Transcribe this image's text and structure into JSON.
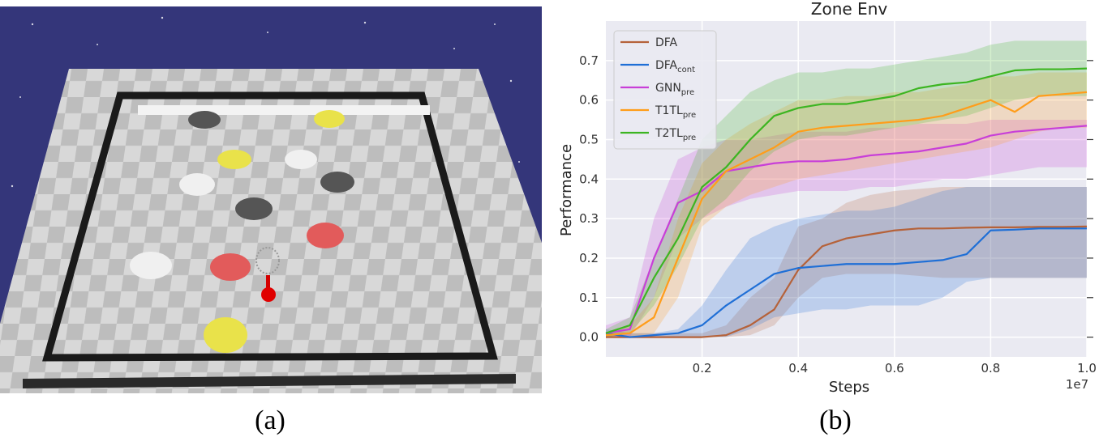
{
  "captions": [
    "(a)",
    "(b)"
  ],
  "chart_data": {
    "type": "line",
    "title": "Zone Env",
    "xlabel": "Steps",
    "ylabel": "Performance",
    "x_offset_label": "1e7",
    "grid": true,
    "legend": "upper left",
    "xlim": [
      0,
      1.0
    ],
    "ylim": [
      -0.05,
      0.8
    ],
    "xticks": [
      0.2,
      0.4,
      0.6,
      0.8,
      {
        "value": 1,
        "label": "1.0"
      }
    ],
    "yticks": [
      {
        "value": 0,
        "label": "0.0"
      },
      0.1,
      0.2,
      0.3,
      0.4,
      0.5,
      0.6,
      0.7
    ],
    "x": [
      0,
      0.05,
      0.1,
      0.15,
      0.2,
      0.25,
      0.3,
      0.35,
      0.4,
      0.45,
      0.5,
      0.55,
      0.6,
      0.65,
      0.7,
      0.75,
      0.8,
      0.85,
      0.9,
      0.95,
      1.0
    ],
    "series": [
      {
        "name": "DFA",
        "color": "#b5623a",
        "values": [
          0,
          0,
          0,
          0,
          0,
          0.005,
          0.03,
          0.07,
          0.17,
          0.23,
          0.25,
          0.26,
          0.27,
          0.275,
          0.275,
          0.277,
          0.278,
          0.278,
          0.279,
          0.279,
          0.28
        ],
        "lower": [
          0,
          0,
          0,
          0,
          0,
          0,
          0.005,
          0.03,
          0.1,
          0.15,
          0.16,
          0.16,
          0.16,
          0.155,
          0.15,
          0.15,
          0.15,
          0.15,
          0.15,
          0.15,
          0.15
        ],
        "upper": [
          0.01,
          0.01,
          0.01,
          0.01,
          0.01,
          0.03,
          0.1,
          0.15,
          0.28,
          0.3,
          0.34,
          0.36,
          0.37,
          0.375,
          0.38,
          0.38,
          0.38,
          0.38,
          0.38,
          0.38,
          0.38
        ]
      },
      {
        "name": "DFA",
        "name_sub": "cont",
        "color": "#1f6fd6",
        "values": [
          0.01,
          0,
          0.005,
          0.01,
          0.03,
          0.08,
          0.12,
          0.16,
          0.175,
          0.18,
          0.185,
          0.185,
          0.185,
          0.19,
          0.195,
          0.21,
          0.27,
          0.272,
          0.275,
          0.275,
          0.275
        ],
        "lower": [
          0,
          0,
          0,
          0,
          0,
          0,
          0.02,
          0.05,
          0.06,
          0.07,
          0.07,
          0.08,
          0.08,
          0.08,
          0.1,
          0.14,
          0.15,
          0.15,
          0.15,
          0.15,
          0.15
        ],
        "upper": [
          0.02,
          0.01,
          0.01,
          0.02,
          0.08,
          0.17,
          0.25,
          0.28,
          0.3,
          0.31,
          0.32,
          0.32,
          0.33,
          0.35,
          0.37,
          0.38,
          0.38,
          0.38,
          0.38,
          0.38,
          0.38
        ]
      },
      {
        "name": "GNN",
        "name_sub": "pre",
        "color": "#c83fd8",
        "values": [
          0.01,
          0.02,
          0.2,
          0.34,
          0.37,
          0.42,
          0.43,
          0.44,
          0.445,
          0.445,
          0.45,
          0.46,
          0.465,
          0.47,
          0.48,
          0.49,
          0.51,
          0.52,
          0.525,
          0.53,
          0.535
        ],
        "lower": [
          0,
          0,
          0.1,
          0.25,
          0.3,
          0.33,
          0.35,
          0.36,
          0.37,
          0.37,
          0.37,
          0.38,
          0.38,
          0.39,
          0.4,
          0.4,
          0.41,
          0.42,
          0.43,
          0.43,
          0.43
        ],
        "upper": [
          0.03,
          0.05,
          0.3,
          0.45,
          0.48,
          0.5,
          0.5,
          0.51,
          0.52,
          0.52,
          0.52,
          0.53,
          0.53,
          0.54,
          0.54,
          0.54,
          0.55,
          0.55,
          0.55,
          0.55,
          0.55
        ]
      },
      {
        "name": "T1TL",
        "name_sub": "pre",
        "color": "#ff9d1a",
        "values": [
          0.005,
          0.01,
          0.05,
          0.2,
          0.35,
          0.42,
          0.45,
          0.48,
          0.52,
          0.53,
          0.535,
          0.54,
          0.545,
          0.55,
          0.56,
          0.58,
          0.6,
          0.57,
          0.61,
          0.615,
          0.62
        ],
        "lower": [
          0,
          0,
          0.01,
          0.1,
          0.28,
          0.33,
          0.36,
          0.38,
          0.4,
          0.41,
          0.42,
          0.43,
          0.44,
          0.45,
          0.46,
          0.47,
          0.48,
          0.5,
          0.52,
          0.53,
          0.53
        ],
        "upper": [
          0.01,
          0.03,
          0.1,
          0.3,
          0.44,
          0.5,
          0.54,
          0.57,
          0.6,
          0.6,
          0.61,
          0.61,
          0.62,
          0.62,
          0.63,
          0.64,
          0.66,
          0.66,
          0.67,
          0.67,
          0.67
        ]
      },
      {
        "name": "T2TL",
        "name_sub": "pre",
        "color": "#3cb521",
        "values": [
          0.01,
          0.03,
          0.15,
          0.25,
          0.38,
          0.43,
          0.5,
          0.56,
          0.58,
          0.59,
          0.59,
          0.6,
          0.61,
          0.63,
          0.64,
          0.645,
          0.66,
          0.675,
          0.678,
          0.678,
          0.68
        ],
        "lower": [
          0,
          0.01,
          0.08,
          0.18,
          0.3,
          0.35,
          0.42,
          0.47,
          0.5,
          0.51,
          0.51,
          0.52,
          0.53,
          0.54,
          0.55,
          0.56,
          0.58,
          0.6,
          0.61,
          0.61,
          0.61
        ],
        "upper": [
          0.02,
          0.05,
          0.2,
          0.35,
          0.5,
          0.56,
          0.62,
          0.65,
          0.67,
          0.67,
          0.68,
          0.68,
          0.69,
          0.7,
          0.71,
          0.72,
          0.74,
          0.75,
          0.75,
          0.75,
          0.75
        ]
      }
    ]
  }
}
